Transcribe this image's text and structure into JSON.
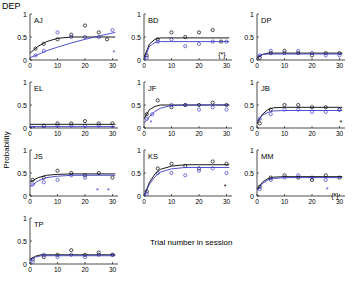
{
  "title": "DEP",
  "ylabel": "Probability",
  "xlabel": "Trial number in session",
  "chart_data": [
    {
      "type": "scatter",
      "title": "AJ",
      "xlim": [
        0,
        32
      ],
      "ylim": [
        0,
        1
      ],
      "xticks": [
        0,
        10,
        20,
        30
      ],
      "yticks": [
        0,
        0.5,
        1
      ],
      "series": [
        {
          "type": "scatter",
          "color": "#000000",
          "marker": "circle",
          "x": [
            2,
            5,
            10,
            15,
            20,
            25,
            28
          ],
          "values": [
            0.25,
            0.35,
            0.45,
            0.55,
            0.75,
            0.6,
            0.45
          ]
        },
        {
          "type": "scatter",
          "color": "#3c3cc8",
          "marker": "circle",
          "x": [
            2,
            5,
            10,
            15,
            20,
            25,
            30
          ],
          "values": [
            0.1,
            0.2,
            0.6,
            0.5,
            0.5,
            0.5,
            0.65
          ]
        },
        {
          "type": "line",
          "color": "#000000",
          "x": [
            0,
            3,
            6,
            10,
            15,
            20,
            25,
            31
          ],
          "values": [
            0.15,
            0.3,
            0.4,
            0.47,
            0.5,
            0.5,
            0.5,
            0.5
          ]
        },
        {
          "type": "line",
          "color": "#3c3cc8",
          "x": [
            0,
            3,
            6,
            10,
            15,
            20,
            25,
            31
          ],
          "values": [
            0.05,
            0.12,
            0.2,
            0.28,
            0.37,
            0.45,
            0.52,
            0.6
          ]
        }
      ],
      "annotations": [
        {
          "text": "*",
          "x": 30,
          "y": 0.18,
          "color": "#3c3cc8"
        }
      ]
    },
    {
      "type": "scatter",
      "title": "BD",
      "xlim": [
        0,
        32
      ],
      "ylim": [
        0,
        1
      ],
      "xticks": [
        0,
        10,
        20,
        30
      ],
      "yticks": [
        0,
        0.5,
        1
      ],
      "series": [
        {
          "type": "scatter",
          "color": "#000000",
          "marker": "circle",
          "x": [
            1,
            5,
            10,
            15,
            20,
            25,
            28
          ],
          "values": [
            0.1,
            0.45,
            0.6,
            0.5,
            0.6,
            0.65,
            0.4
          ]
        },
        {
          "type": "scatter",
          "color": "#3c3cc8",
          "marker": "circle",
          "x": [
            1,
            5,
            10,
            15,
            20,
            25,
            30
          ],
          "values": [
            0.05,
            0.4,
            0.45,
            0.3,
            0.35,
            0.4,
            0.4
          ]
        },
        {
          "type": "line",
          "color": "#000000",
          "x": [
            0,
            2,
            4,
            6,
            10,
            20,
            31
          ],
          "values": [
            0.05,
            0.35,
            0.45,
            0.48,
            0.48,
            0.48,
            0.48
          ]
        },
        {
          "type": "line",
          "color": "#3c3cc8",
          "x": [
            0,
            2,
            4,
            6,
            10,
            20,
            31
          ],
          "values": [
            0.0,
            0.3,
            0.38,
            0.4,
            0.4,
            0.4,
            0.4
          ]
        }
      ],
      "annotations": [
        {
          "text": "{*}",
          "x": 27,
          "y": 0.12,
          "color": "#000000"
        }
      ]
    },
    {
      "type": "scatter",
      "title": "DP",
      "xlim": [
        0,
        32
      ],
      "ylim": [
        0,
        1
      ],
      "xticks": [
        0,
        10,
        20,
        30
      ],
      "yticks": [
        0,
        0.5,
        1
      ],
      "series": [
        {
          "type": "scatter",
          "color": "#000000",
          "marker": "circle",
          "x": [
            1,
            5,
            10,
            15,
            20,
            25,
            30
          ],
          "values": [
            0.05,
            0.15,
            0.2,
            0.15,
            0.1,
            0.15,
            0.15
          ]
        },
        {
          "type": "scatter",
          "color": "#3c3cc8",
          "marker": "circle",
          "x": [
            1,
            5,
            10,
            15,
            20,
            25,
            30
          ],
          "values": [
            0.1,
            0.2,
            0.15,
            0.2,
            0.15,
            0.1,
            0.1
          ]
        },
        {
          "type": "line",
          "color": "#000000",
          "x": [
            0,
            2,
            4,
            8,
            31
          ],
          "values": [
            0.05,
            0.12,
            0.15,
            0.15,
            0.15
          ]
        },
        {
          "type": "line",
          "color": "#3c3cc8",
          "x": [
            0,
            2,
            4,
            8,
            31
          ],
          "values": [
            0.08,
            0.12,
            0.13,
            0.13,
            0.13
          ]
        }
      ],
      "annotations": []
    },
    {
      "type": "scatter",
      "title": "EL",
      "xlim": [
        0,
        32
      ],
      "ylim": [
        0,
        1
      ],
      "xticks": [
        0,
        10,
        20,
        30
      ],
      "yticks": [
        0,
        0.5,
        1
      ],
      "series": [
        {
          "type": "scatter",
          "color": "#000000",
          "marker": "circle",
          "x": [
            1,
            5,
            10,
            15,
            20,
            25,
            30
          ],
          "values": [
            0.0,
            0.05,
            0.1,
            0.1,
            0.15,
            0.1,
            0.1
          ]
        },
        {
          "type": "scatter",
          "color": "#3c3cc8",
          "marker": "circle",
          "x": [
            1,
            5,
            10,
            15,
            20,
            25,
            30
          ],
          "values": [
            0.0,
            0.0,
            0.05,
            0.05,
            0.05,
            0.05,
            0.0
          ]
        },
        {
          "type": "line",
          "color": "#000000",
          "x": [
            0,
            31
          ],
          "values": [
            0.08,
            0.08
          ]
        },
        {
          "type": "line",
          "color": "#3c3cc8",
          "x": [
            0,
            31
          ],
          "values": [
            0.03,
            0.03
          ]
        }
      ],
      "annotations": []
    },
    {
      "type": "scatter",
      "title": "JF",
      "xlim": [
        0,
        32
      ],
      "ylim": [
        0,
        1
      ],
      "xticks": [
        0,
        10,
        20,
        30
      ],
      "yticks": [
        0,
        0.5,
        1
      ],
      "series": [
        {
          "type": "scatter",
          "color": "#000000",
          "marker": "circle",
          "x": [
            1,
            5,
            10,
            15,
            20,
            25,
            30
          ],
          "values": [
            0.3,
            0.6,
            0.45,
            0.5,
            0.5,
            0.55,
            0.5
          ]
        },
        {
          "type": "scatter",
          "color": "#3c3cc8",
          "marker": "circle",
          "x": [
            1,
            3,
            10,
            15,
            20,
            25,
            30
          ],
          "values": [
            0.2,
            0.3,
            0.5,
            0.5,
            0.4,
            0.45,
            0.4
          ]
        },
        {
          "type": "line",
          "color": "#000000",
          "x": [
            0,
            2,
            4,
            6,
            10,
            20,
            31
          ],
          "values": [
            0.2,
            0.4,
            0.47,
            0.5,
            0.5,
            0.5,
            0.5
          ]
        },
        {
          "type": "line",
          "color": "#3c3cc8",
          "x": [
            0,
            2,
            4,
            6,
            10,
            20,
            31
          ],
          "values": [
            0.1,
            0.25,
            0.36,
            0.43,
            0.49,
            0.5,
            0.5
          ]
        }
      ],
      "annotations": [
        {
          "text": "*",
          "x": 2,
          "y": 0.12,
          "color": "#3c3cc8"
        }
      ]
    },
    {
      "type": "scatter",
      "title": "JB",
      "xlim": [
        0,
        32
      ],
      "ylim": [
        0,
        1
      ],
      "xticks": [
        0,
        10,
        20,
        30
      ],
      "yticks": [
        0,
        0.5,
        1
      ],
      "series": [
        {
          "type": "scatter",
          "color": "#000000",
          "marker": "circle",
          "x": [
            1,
            5,
            10,
            15,
            20,
            25,
            30
          ],
          "values": [
            0.1,
            0.4,
            0.5,
            0.5,
            0.45,
            0.45,
            0.4
          ]
        },
        {
          "type": "scatter",
          "color": "#3c3cc8",
          "marker": "circle",
          "x": [
            1,
            5,
            10,
            15,
            20,
            25,
            30
          ],
          "values": [
            0.2,
            0.3,
            0.4,
            0.4,
            0.35,
            0.35,
            0.4
          ]
        },
        {
          "type": "line",
          "color": "#000000",
          "x": [
            0,
            2,
            4,
            6,
            10,
            20,
            31
          ],
          "values": [
            0.1,
            0.3,
            0.4,
            0.44,
            0.45,
            0.45,
            0.45
          ]
        },
        {
          "type": "line",
          "color": "#3c3cc8",
          "x": [
            0,
            2,
            4,
            6,
            10,
            20,
            31
          ],
          "values": [
            0.15,
            0.28,
            0.34,
            0.37,
            0.38,
            0.38,
            0.38
          ]
        }
      ],
      "annotations": [
        {
          "text": "*",
          "x": 30,
          "y": 0.12,
          "color": "#000000"
        }
      ]
    },
    {
      "type": "scatter",
      "title": "JS",
      "xlim": [
        0,
        32
      ],
      "ylim": [
        0,
        1
      ],
      "xticks": [
        0,
        10,
        20,
        30
      ],
      "yticks": [
        0,
        0.5,
        1
      ],
      "series": [
        {
          "type": "scatter",
          "color": "#000000",
          "marker": "circle",
          "x": [
            1,
            5,
            10,
            15,
            20,
            25,
            30
          ],
          "values": [
            0.35,
            0.4,
            0.55,
            0.5,
            0.45,
            0.5,
            0.4
          ]
        },
        {
          "type": "scatter",
          "color": "#3c3cc8",
          "marker": "circle",
          "x": [
            1,
            5,
            10,
            15,
            20
          ],
          "values": [
            0.25,
            0.3,
            0.35,
            0.45,
            0.4
          ]
        },
        {
          "type": "line",
          "color": "#000000",
          "x": [
            0,
            3,
            6,
            10,
            15,
            20,
            31
          ],
          "values": [
            0.3,
            0.4,
            0.45,
            0.47,
            0.48,
            0.48,
            0.48
          ]
        },
        {
          "type": "line",
          "color": "#3c3cc8",
          "x": [
            0,
            3,
            6,
            10,
            15,
            20,
            31
          ],
          "values": [
            0.2,
            0.33,
            0.4,
            0.43,
            0.45,
            0.45,
            0.45
          ]
        }
      ],
      "annotations": [
        {
          "text": "*",
          "x": 24,
          "y": 0.12,
          "color": "#3c3cc8"
        },
        {
          "text": "*",
          "x": 28,
          "y": 0.12,
          "color": "#3c3cc8"
        }
      ]
    },
    {
      "type": "scatter",
      "title": "KS",
      "xlim": [
        0,
        32
      ],
      "ylim": [
        0,
        1
      ],
      "xticks": [
        0,
        10,
        20,
        30
      ],
      "yticks": [
        0,
        0.5,
        1
      ],
      "series": [
        {
          "type": "scatter",
          "color": "#000000",
          "marker": "circle",
          "x": [
            1,
            5,
            10,
            15,
            20,
            25,
            30
          ],
          "values": [
            0.1,
            0.6,
            0.7,
            0.65,
            0.6,
            0.75,
            0.7
          ]
        },
        {
          "type": "scatter",
          "color": "#3c3cc8",
          "marker": "circle",
          "x": [
            1,
            5,
            10,
            15,
            20,
            25,
            30
          ],
          "values": [
            0.05,
            0.5,
            0.5,
            0.45,
            0.55,
            0.6,
            0.5
          ]
        },
        {
          "type": "line",
          "color": "#000000",
          "x": [
            0,
            2,
            4,
            6,
            10,
            15,
            20,
            31
          ],
          "values": [
            0.0,
            0.3,
            0.48,
            0.58,
            0.65,
            0.68,
            0.68,
            0.68
          ]
        },
        {
          "type": "line",
          "color": "#3c3cc8",
          "x": [
            0,
            2,
            4,
            6,
            10,
            15,
            20,
            31
          ],
          "values": [
            0.0,
            0.26,
            0.42,
            0.52,
            0.59,
            0.62,
            0.62,
            0.62
          ]
        }
      ],
      "annotations": [
        {
          "text": "*",
          "x": 29,
          "y": 0.22,
          "color": "#000000"
        }
      ]
    },
    {
      "type": "scatter",
      "title": "MM",
      "xlim": [
        0,
        32
      ],
      "ylim": [
        0,
        1
      ],
      "xticks": [
        0,
        10,
        20,
        30
      ],
      "yticks": [
        0,
        0.5,
        1
      ],
      "series": [
        {
          "type": "scatter",
          "color": "#000000",
          "marker": "circle",
          "x": [
            1,
            5,
            10,
            15,
            20,
            25,
            30
          ],
          "values": [
            0.2,
            0.4,
            0.45,
            0.4,
            0.35,
            0.45,
            0.4
          ]
        },
        {
          "type": "scatter",
          "color": "#3c3cc8",
          "marker": "circle",
          "x": [
            1,
            5,
            10,
            15,
            20,
            25
          ],
          "values": [
            0.15,
            0.35,
            0.4,
            0.45,
            0.4,
            0.35
          ]
        },
        {
          "type": "line",
          "color": "#000000",
          "x": [
            0,
            2,
            4,
            6,
            10,
            20,
            31
          ],
          "values": [
            0.15,
            0.3,
            0.38,
            0.41,
            0.42,
            0.42,
            0.42
          ]
        },
        {
          "type": "line",
          "color": "#3c3cc8",
          "x": [
            0,
            2,
            4,
            6,
            10,
            20,
            31
          ],
          "values": [
            0.12,
            0.27,
            0.35,
            0.38,
            0.4,
            0.4,
            0.4
          ]
        }
      ],
      "annotations": [
        {
          "text": "*",
          "x": 25,
          "y": 0.15,
          "color": "#3c3cc8"
        },
        {
          "text": "{*}",
          "x": 27,
          "y": 0.02,
          "color": "#000000"
        }
      ]
    },
    {
      "type": "scatter",
      "title": "TP",
      "xlim": [
        0,
        32
      ],
      "ylim": [
        0,
        1
      ],
      "xticks": [
        0,
        10,
        20,
        30
      ],
      "yticks": [
        0,
        0.5,
        1
      ],
      "series": [
        {
          "type": "scatter",
          "color": "#000000",
          "marker": "circle",
          "x": [
            1,
            5,
            10,
            15,
            20,
            25,
            30
          ],
          "values": [
            0.1,
            0.15,
            0.2,
            0.3,
            0.2,
            0.25,
            0.2
          ]
        },
        {
          "type": "scatter",
          "color": "#3c3cc8",
          "marker": "circle",
          "x": [
            1,
            5,
            10,
            15,
            20,
            25,
            30
          ],
          "values": [
            0.05,
            0.2,
            0.15,
            0.2,
            0.15,
            0.2,
            0.2
          ]
        },
        {
          "type": "line",
          "color": "#000000",
          "x": [
            0,
            2,
            4,
            8,
            31
          ],
          "values": [
            0.1,
            0.17,
            0.2,
            0.2,
            0.2
          ]
        },
        {
          "type": "line",
          "color": "#3c3cc8",
          "x": [
            0,
            2,
            4,
            8,
            31
          ],
          "values": [
            0.08,
            0.15,
            0.18,
            0.18,
            0.18
          ]
        }
      ],
      "annotations": []
    }
  ]
}
